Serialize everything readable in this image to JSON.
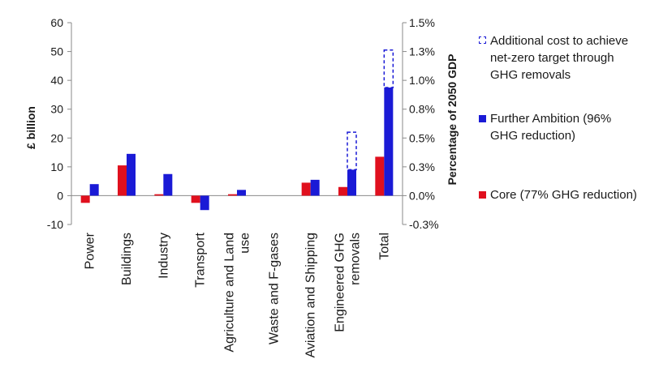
{
  "chart_data": {
    "type": "bar",
    "ylabel": "£ billion",
    "y2label": "Percentage of 2050 GDP",
    "ylim": [
      -10,
      60
    ],
    "yticks": [
      "60",
      "50",
      "40",
      "30",
      "20",
      "10",
      "0",
      "-10"
    ],
    "y2ticks": [
      "1.5%",
      "1.3%",
      "1.0%",
      "0.8%",
      "0.5%",
      "0.3%",
      "0.0%",
      "-0.3%"
    ],
    "grid": false,
    "legend_position": "right",
    "categories": [
      [
        "Power"
      ],
      [
        "Buildings"
      ],
      [
        "Industry"
      ],
      [
        "Transport"
      ],
      [
        "Agriculture and Land",
        "use"
      ],
      [
        "Waste and F-gases"
      ],
      [
        "Aviation and Shipping"
      ],
      [
        "Engineered GHG",
        "removals"
      ],
      [
        "Total"
      ]
    ],
    "series": [
      {
        "name": "Core (77% GHG reduction)",
        "color": "#e0101e",
        "values": [
          -2.5,
          10.5,
          0.5,
          -2.5,
          0.5,
          0,
          4.5,
          3,
          13.5
        ]
      },
      {
        "name": "Further Ambition (96% GHG reduction)",
        "color": "#1a1ad6",
        "values": [
          4,
          14.5,
          7.5,
          -5,
          2,
          0,
          5.5,
          9,
          37.5
        ]
      },
      {
        "name": "Additional cost to achieve net-zero target through GHG removals",
        "color": "#1a1ad6",
        "style": "dashed",
        "base": [
          null,
          null,
          null,
          null,
          null,
          null,
          null,
          9,
          37.5
        ],
        "values": [
          null,
          null,
          null,
          null,
          null,
          null,
          null,
          22,
          50.5
        ]
      }
    ]
  },
  "legend": [
    {
      "key": "additional",
      "label": "Additional cost to achieve net-zero target through GHG removals",
      "color": "#1a1ad6",
      "style": "dashed"
    },
    {
      "key": "further",
      "label": "Further Ambition (96% GHG reduction)",
      "color": "#1a1ad6",
      "style": "solid"
    },
    {
      "key": "core",
      "label": "Core (77% GHG reduction)",
      "color": "#e0101e",
      "style": "solid"
    }
  ]
}
